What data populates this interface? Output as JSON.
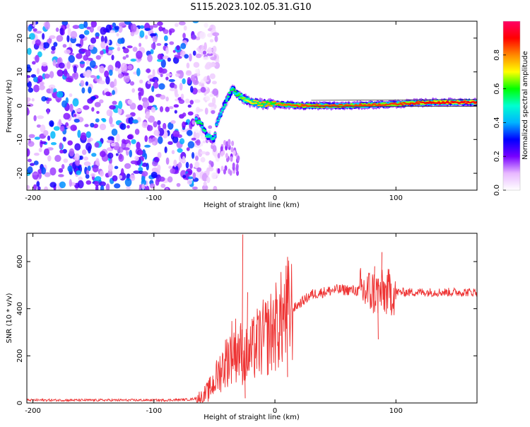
{
  "title": "S115.2023.102.05.31.G10",
  "chart_data": [
    {
      "type": "heatmap",
      "xlabel": "Height of straight line (km)",
      "ylabel": "Frequency (Hz)",
      "xlim": [
        -205,
        167
      ],
      "ylim": [
        -25,
        25
      ],
      "xticks": [
        -200,
        -100,
        0,
        100
      ],
      "yticks": [
        -20,
        -10,
        0,
        10,
        20
      ],
      "colorbar": {
        "label": "Normalized spectral amplitude",
        "range": [
          0,
          1
        ],
        "ticks": [
          "0.0",
          "0.2",
          "0.4",
          "0.6",
          "0.8"
        ],
        "colors": [
          "#ffffff",
          "#e8b8ff",
          "#7700ff",
          "#0000ff",
          "#00b4ff",
          "#00ffd0",
          "#00ff00",
          "#ffff00",
          "#ff8800",
          "#ff0000",
          "#ff0066"
        ]
      },
      "noise_region": {
        "x": [
          -205,
          -65
        ],
        "level": 0.3
      },
      "ridge": [
        {
          "x": -65,
          "y": -4,
          "amp": 0.55
        },
        {
          "x": -60,
          "y": -6,
          "amp": 0.55
        },
        {
          "x": -56,
          "y": -9,
          "amp": 0.5
        },
        {
          "x": -50,
          "y": -10,
          "amp": 0.5
        },
        {
          "x": -48,
          "y": -5,
          "amp": 0.45
        },
        {
          "x": -42,
          "y": 0,
          "amp": 0.5
        },
        {
          "x": -35,
          "y": 5,
          "amp": 0.55
        },
        {
          "x": -30,
          "y": 3,
          "amp": 0.6
        },
        {
          "x": -25,
          "y": 2,
          "amp": 0.65
        },
        {
          "x": -20,
          "y": 1,
          "amp": 0.7
        },
        {
          "x": -10,
          "y": 0.5,
          "amp": 0.75
        },
        {
          "x": 0,
          "y": 0.5,
          "amp": 0.78
        },
        {
          "x": 20,
          "y": 0,
          "amp": 0.85
        },
        {
          "x": 60,
          "y": 0,
          "amp": 0.85
        },
        {
          "x": 100,
          "y": 0.5,
          "amp": 0.85
        },
        {
          "x": 130,
          "y": 1,
          "amp": 0.9
        },
        {
          "x": 167,
          "y": 1,
          "amp": 0.92
        }
      ]
    },
    {
      "type": "line",
      "xlabel": "Height of straight line (km)",
      "ylabel": "SNR (10 * v/v)",
      "xlim": [
        -205,
        167
      ],
      "ylim": [
        0,
        720
      ],
      "xticks": [
        -200,
        -100,
        0,
        100
      ],
      "yticks": [
        0,
        200,
        400,
        600
      ],
      "color": "#ee3333",
      "series": [
        {
          "x": [
            -205,
            -180,
            -150,
            -120,
            -90,
            -70,
            -60,
            -55,
            -50,
            -45,
            -40,
            -35,
            -30,
            -25,
            -20,
            -15,
            -10,
            -5,
            0,
            5,
            10,
            15,
            20,
            25,
            30,
            40,
            50,
            60,
            70,
            80,
            85,
            90,
            95,
            100,
            110,
            120,
            140,
            167
          ],
          "y": [
            12,
            12,
            12,
            12,
            12,
            15,
            25,
            50,
            90,
            140,
            180,
            230,
            230,
            190,
            210,
            250,
            270,
            290,
            320,
            350,
            380,
            400,
            420,
            440,
            460,
            470,
            480,
            480,
            475,
            470,
            465,
            465,
            470,
            470,
            470,
            470,
            470,
            470
          ],
          "spikes": [
            {
              "x": -27,
              "y": 715
            },
            {
              "x": -25,
              "y": 20
            },
            {
              "x": -23,
              "y": 470
            },
            {
              "x": 10,
              "y": 620
            },
            {
              "x": 10,
              "y": 110
            },
            {
              "x": 0,
              "y": 440
            },
            {
              "x": 82,
              "y": 580
            },
            {
              "x": 88,
              "y": 640
            },
            {
              "x": 85,
              "y": 270
            }
          ]
        }
      ]
    }
  ]
}
